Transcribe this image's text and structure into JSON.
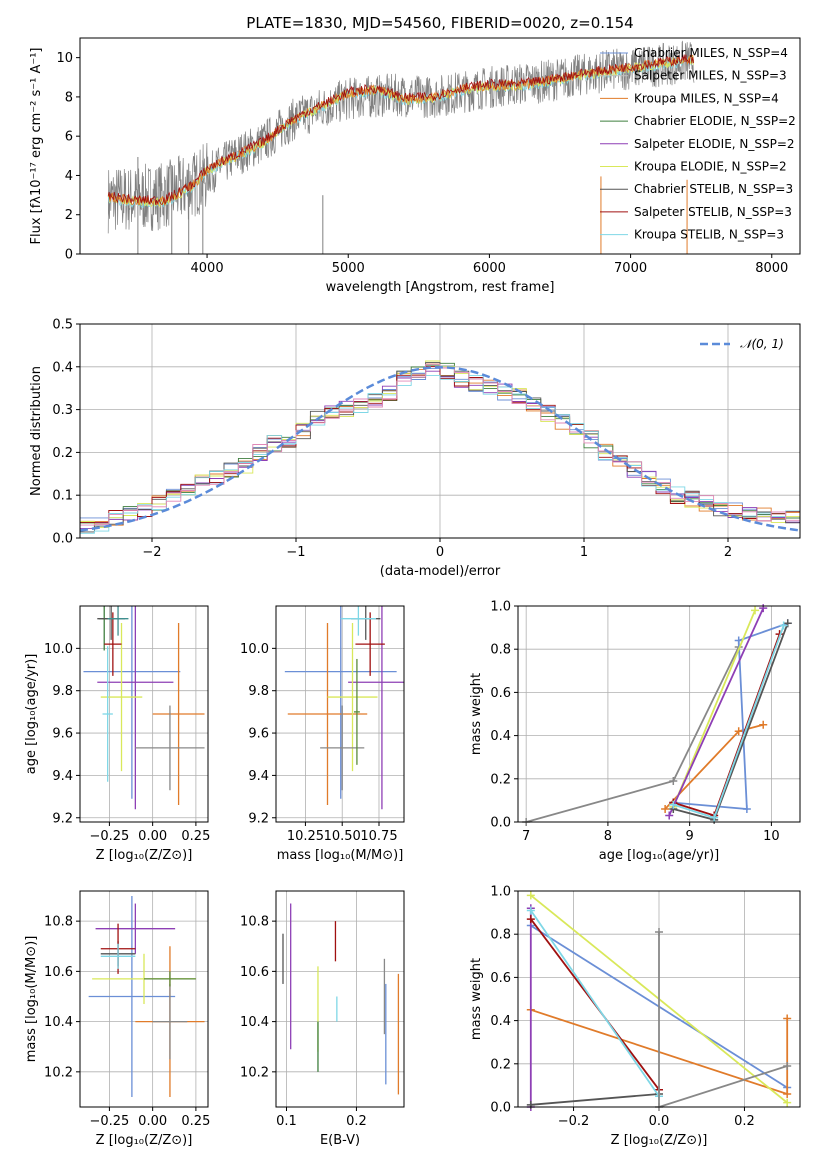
{
  "figure": {
    "title": "PLATE=1830, MJD=54560, FIBERID=0020, z=0.154"
  },
  "model_colors": {
    "Chabrier MILES": "#6b8fd6",
    "Salpeter MILES": "#c0c0c0",
    "Kroupa MILES": "#e07b2a",
    "Chabrier ELODIE": "#3f7f3f",
    "Salpeter ELODIE": "#8e3fb5",
    "Kroupa ELODIE": "#d9e85a",
    "Chabrier STELIB": "#555555",
    "Salpeter STELIB": "#a01010",
    "Kroupa STELIB": "#7fd7e6",
    "data_spectrum": "#808080",
    "normal_curve": "#5b8bd9",
    "pink_model": "#e088b8"
  },
  "chart_data": [
    {
      "id": "spectrum",
      "type": "line",
      "xlabel": "wavelength [Angstrom, rest frame]",
      "ylabel": "Flux [fλ10⁻¹⁷ erg cm⁻² s⁻¹ A⁻¹]",
      "xlim": [
        3100,
        8200
      ],
      "ylim": [
        0,
        11
      ],
      "xticks": [
        "4000",
        "5000",
        "6000",
        "7000",
        "8000"
      ],
      "yticks": [
        "0",
        "2",
        "4",
        "6",
        "8",
        "10"
      ],
      "legend_position": "top-right",
      "legend": [
        "Chabrier MILES, N_SSP=4",
        "Salpeter MILES, N_SSP=3",
        "Kroupa MILES, N_SSP=4",
        "Chabrier ELODIE, N_SSP=2",
        "Salpeter ELODIE, N_SSP=2",
        "Kroupa ELODIE, N_SSP=2",
        "Chabrier STELIB, N_SSP=3",
        "Salpeter STELIB, N_SSP=3",
        "Kroupa STELIB, N_SSP=3"
      ],
      "model_trend": {
        "x": [
          3300,
          3500,
          3700,
          3900,
          4000,
          4200,
          4400,
          4600,
          4800,
          5000,
          5200,
          5400,
          5600,
          5800,
          6000,
          6200,
          6400,
          6600,
          6800,
          7000,
          7200,
          7400
        ],
        "y": [
          2.8,
          2.6,
          2.6,
          3.4,
          4.2,
          4.9,
          5.6,
          6.7,
          7.4,
          8.1,
          8.3,
          7.8,
          7.9,
          8.3,
          8.5,
          8.5,
          8.7,
          9.0,
          9.2,
          9.4,
          9.6,
          9.8
        ]
      },
      "data_trend": {
        "x": [
          3500,
          3700,
          3900,
          4200,
          4400,
          4600,
          4800,
          5000,
          5300,
          5600,
          6000,
          6400,
          6800,
          7200,
          7400
        ],
        "y": [
          2.8,
          3.0,
          3.5,
          5.0,
          5.7,
          6.8,
          7.4,
          7.9,
          8.1,
          8.0,
          8.5,
          8.8,
          9.3,
          9.6,
          9.8
        ]
      },
      "vertical_spikes_x": [
        3510,
        3750,
        3870,
        3970,
        4820,
        6790,
        7400
      ]
    },
    {
      "id": "residuals",
      "type": "bar",
      "xlabel": "(data-model)/error",
      "ylabel": "Normed distribution",
      "xlim": [
        -2.5,
        2.5
      ],
      "ylim": [
        0,
        0.5
      ],
      "xticks": [
        "−2",
        "−1",
        "0",
        "1",
        "2"
      ],
      "yticks": [
        "0.0",
        "0.1",
        "0.2",
        "0.3",
        "0.4",
        "0.5"
      ],
      "legend_position": "top-right",
      "legend": [
        "𝒩(0, 1)"
      ],
      "bin_width": 0.1,
      "histogram": {
        "bin_centers": [
          -2.45,
          -2.35,
          -2.25,
          -2.15,
          -2.05,
          -1.95,
          -1.85,
          -1.75,
          -1.65,
          -1.55,
          -1.45,
          -1.35,
          -1.25,
          -1.15,
          -1.05,
          -0.95,
          -0.85,
          -0.75,
          -0.65,
          -0.55,
          -0.45,
          -0.35,
          -0.25,
          -0.15,
          -0.05,
          0.05,
          0.15,
          0.25,
          0.35,
          0.45,
          0.55,
          0.65,
          0.75,
          0.85,
          0.95,
          1.05,
          1.15,
          1.25,
          1.35,
          1.45,
          1.55,
          1.65,
          1.75,
          1.85,
          1.95,
          2.05,
          2.15,
          2.25,
          2.35,
          2.45
        ],
        "values": [
          0.03,
          0.035,
          0.045,
          0.06,
          0.07,
          0.085,
          0.1,
          0.12,
          0.13,
          0.14,
          0.155,
          0.17,
          0.2,
          0.22,
          0.23,
          0.25,
          0.28,
          0.29,
          0.3,
          0.31,
          0.32,
          0.34,
          0.37,
          0.38,
          0.4,
          0.39,
          0.37,
          0.36,
          0.35,
          0.34,
          0.33,
          0.31,
          0.29,
          0.27,
          0.25,
          0.23,
          0.2,
          0.18,
          0.16,
          0.14,
          0.12,
          0.1,
          0.09,
          0.08,
          0.07,
          0.065,
          0.06,
          0.055,
          0.05,
          0.045
        ]
      },
      "normal_curve": {
        "mean": 0,
        "sigma": 1
      }
    },
    {
      "id": "age_vs_Z",
      "type": "scatter",
      "xlabel": "Z [log₁₀(Z/Z⊙)]",
      "ylabel": "age  [log₁₀(age/yr)]",
      "xlim": [
        -0.42,
        0.32
      ],
      "ylim": [
        9.18,
        10.2
      ],
      "xticks": [
        "−0.25",
        "0.00",
        "0.25"
      ],
      "yticks": [
        "9.2",
        "9.4",
        "9.6",
        "9.8",
        "10.0"
      ],
      "points": [
        {
          "model": "Chabrier MILES",
          "x": -0.12,
          "y": 9.89,
          "xerr": 0.28,
          "yerr": 0.6
        },
        {
          "model": "Kroupa MILES",
          "x": 0.15,
          "y": 9.69,
          "xerr": 0.15,
          "yerr": 0.43
        },
        {
          "model": "Chabrier ELODIE",
          "x": -0.28,
          "y": 10.14,
          "xerr": 0.03,
          "yerr": 0.15
        },
        {
          "model": "Salpeter ELODIE",
          "x": -0.1,
          "y": 9.84,
          "xerr": 0.22,
          "yerr": 0.6
        },
        {
          "model": "Kroupa ELODIE",
          "x": -0.18,
          "y": 9.77,
          "xerr": 0.12,
          "yerr": 0.35
        },
        {
          "model": "Chabrier STELIB",
          "x": -0.24,
          "y": 10.14,
          "xerr": 0.08,
          "yerr": 0.1
        },
        {
          "model": "Salpeter STELIB",
          "x": -0.23,
          "y": 10.02,
          "xerr": 0.05,
          "yerr": 0.15
        },
        {
          "model": "Kroupa STELIB",
          "x": -0.26,
          "y": 9.69,
          "xerr": 0.03,
          "yerr": 0.32
        },
        {
          "model": "pink",
          "x": 0.1,
          "y": 9.53,
          "xerr": 0.2,
          "yerr": 0.2
        },
        {
          "model": "teal",
          "x": -0.2,
          "y": 10.14,
          "xerr": 0.06,
          "yerr": 0.08
        }
      ]
    },
    {
      "id": "age_vs_mass",
      "type": "scatter",
      "xlabel": "mass [log₁₀(M/M⊙)]",
      "ylabel": "",
      "xlim": [
        10.05,
        10.92
      ],
      "ylim": [
        9.18,
        10.2
      ],
      "xticks": [
        "10.25",
        "10.50",
        "10.75"
      ],
      "yticks": [
        "9.2",
        "9.4",
        "9.6",
        "9.8",
        "10.0"
      ],
      "points": [
        {
          "model": "Chabrier MILES",
          "x": 10.49,
          "y": 9.89,
          "xerr": 0.38,
          "yerr": 0.6
        },
        {
          "model": "Kroupa MILES",
          "x": 10.4,
          "y": 9.69,
          "xerr": 0.27,
          "yerr": 0.43
        },
        {
          "model": "Salpeter ELODIE",
          "x": 10.77,
          "y": 9.84,
          "xerr": 0.23,
          "yerr": 0.6
        },
        {
          "model": "Kroupa ELODIE",
          "x": 10.57,
          "y": 9.77,
          "xerr": 0.17,
          "yerr": 0.35
        },
        {
          "model": "Chabrier STELIB",
          "x": 10.66,
          "y": 10.14,
          "xerr": 0.1,
          "yerr": 0.1
        },
        {
          "model": "Salpeter STELIB",
          "x": 10.69,
          "y": 10.02,
          "xerr": 0.1,
          "yerr": 0.15
        },
        {
          "model": "Kroupa STELIB",
          "x": 10.61,
          "y": 10.14,
          "xerr": 0.12,
          "yerr": 0.08
        },
        {
          "model": "pink",
          "x": 10.5,
          "y": 9.53,
          "xerr": 0.15,
          "yerr": 0.2
        },
        {
          "model": "green",
          "x": 10.6,
          "y": 9.7,
          "xerr": 0.02,
          "yerr": 0.25
        }
      ]
    },
    {
      "id": "cum_weight_vs_age",
      "type": "line",
      "xlabel": "age  [log₁₀(age/yr)]",
      "ylabel": "mass weight",
      "xlim": [
        6.9,
        10.35
      ],
      "ylim": [
        0,
        1.0
      ],
      "xticks": [
        "7",
        "8",
        "9",
        "10"
      ],
      "yticks": [
        "0.0",
        "0.2",
        "0.4",
        "0.6",
        "0.8",
        "1.0"
      ],
      "series": [
        {
          "model": "pink",
          "x": [
            7.0,
            8.8,
            9.6
          ],
          "y": [
            0.0,
            0.19,
            0.81
          ]
        },
        {
          "model": "Kroupa MILES",
          "x": [
            8.7,
            9.6,
            9.9
          ],
          "y": [
            0.06,
            0.42,
            0.45
          ]
        },
        {
          "model": "Chabrier MILES",
          "x": [
            8.8,
            9.7,
            9.6,
            10.2
          ],
          "y": [
            0.09,
            0.06,
            0.84,
            0.92
          ]
        },
        {
          "model": "Salpeter STELIB",
          "x": [
            8.8,
            9.3,
            10.1
          ],
          "y": [
            0.09,
            0.03,
            0.87
          ]
        },
        {
          "model": "Kroupa ELODIE",
          "x": [
            8.8,
            9.8
          ],
          "y": [
            0.07,
            0.98
          ]
        },
        {
          "model": "Salpeter ELODIE",
          "x": [
            8.75,
            9.9
          ],
          "y": [
            0.03,
            0.99
          ]
        },
        {
          "model": "Chabrier STELIB",
          "x": [
            8.8,
            9.3,
            10.2
          ],
          "y": [
            0.06,
            0.01,
            0.92
          ]
        },
        {
          "model": "Kroupa STELIB",
          "x": [
            8.8,
            9.3,
            10.15
          ],
          "y": [
            0.08,
            0.02,
            0.91
          ]
        }
      ]
    },
    {
      "id": "mass_vs_Z",
      "type": "scatter",
      "xlabel": "Z [log₁₀(Z/Z⊙)]",
      "ylabel": "mass [log₁₀(M/M⊙)]",
      "xlim": [
        -0.42,
        0.32
      ],
      "ylim": [
        10.06,
        10.92
      ],
      "xticks": [
        "−0.25",
        "0.00",
        "0.25"
      ],
      "yticks": [
        "10.2",
        "10.4",
        "10.6",
        "10.8"
      ],
      "points": [
        {
          "model": "Chabrier MILES",
          "x": -0.12,
          "y": 10.5,
          "xerr": 0.25,
          "yerr": 0.4
        },
        {
          "model": "Kroupa MILES",
          "x": 0.1,
          "y": 10.4,
          "xerr": 0.2,
          "yerr": 0.3
        },
        {
          "model": "Salpeter ELODIE",
          "x": -0.1,
          "y": 10.77,
          "xerr": 0.23,
          "yerr": 0.1
        },
        {
          "model": "Kroupa ELODIE",
          "x": -0.05,
          "y": 10.57,
          "xerr": 0.3,
          "yerr": 0.1
        },
        {
          "model": "Chabrier STELIB",
          "x": -0.2,
          "y": 10.67,
          "xerr": 0.1,
          "yerr": 0.05
        },
        {
          "model": "Salpeter STELIB",
          "x": -0.2,
          "y": 10.69,
          "xerr": 0.1,
          "yerr": 0.1
        },
        {
          "model": "Kroupa STELIB",
          "x": -0.2,
          "y": 10.66,
          "xerr": 0.1,
          "yerr": 0.05
        },
        {
          "model": "pink",
          "x": 0.1,
          "y": 10.4,
          "xerr": 0.1,
          "yerr": 0.15
        },
        {
          "model": "green",
          "x": 0.1,
          "y": 10.57,
          "xerr": 0.15,
          "yerr": 0.03
        }
      ]
    },
    {
      "id": "mass_vs_EBV",
      "type": "scatter",
      "xlabel": "E(B-V)",
      "ylabel": "",
      "xlim": [
        0.085,
        0.268
      ],
      "ylim": [
        10.06,
        10.92
      ],
      "xticks": [
        "0.1",
        "0.2"
      ],
      "yticks": [
        "10.2",
        "10.4",
        "10.6",
        "10.8"
      ],
      "points": [
        {
          "model": "Chabrier STELIB",
          "x": 0.095,
          "y": 10.65,
          "yerr": 0.1
        },
        {
          "model": "Salpeter ELODIE",
          "x": 0.106,
          "y": 10.58,
          "yerr": 0.29
        },
        {
          "model": "Kroupa ELODIE",
          "x": 0.145,
          "y": 10.45,
          "yerr": 0.17
        },
        {
          "model": "Chabrier ELODIE",
          "x": 0.145,
          "y": 10.3,
          "yerr": 0.1
        },
        {
          "model": "Salpeter STELIB",
          "x": 0.17,
          "y": 10.72,
          "yerr": 0.08
        },
        {
          "model": "Kroupa STELIB",
          "x": 0.172,
          "y": 10.45,
          "yerr": 0.05
        },
        {
          "model": "pink",
          "x": 0.24,
          "y": 10.5,
          "yerr": 0.15
        },
        {
          "model": "Chabrier MILES",
          "x": 0.242,
          "y": 10.35,
          "yerr": 0.2
        },
        {
          "model": "Kroupa MILES",
          "x": 0.26,
          "y": 10.35,
          "yerr": 0.24
        }
      ]
    },
    {
      "id": "cum_weight_vs_Z",
      "type": "line",
      "xlabel": "Z [log₁₀(Z/Z⊙)]",
      "ylabel": "mass weight",
      "xlim": [
        -0.33,
        0.33
      ],
      "ylim": [
        0,
        1.0
      ],
      "xticks": [
        "−0.2",
        "0.0",
        "0.2"
      ],
      "yticks": [
        "0.0",
        "0.2",
        "0.4",
        "0.6",
        "0.8",
        "1.0"
      ],
      "series": [
        {
          "model": "Chabrier MILES",
          "x": [
            -0.3,
            0.3
          ],
          "y": [
            0.84,
            0.09
          ]
        },
        {
          "model": "Kroupa MILES",
          "x": [
            -0.3,
            0.3,
            0.3
          ],
          "y": [
            0.45,
            0.06,
            0.41
          ]
        },
        {
          "model": "Kroupa ELODIE",
          "x": [
            -0.3,
            0.3
          ],
          "y": [
            0.98,
            0.02
          ]
        },
        {
          "model": "Salpeter ELODIE",
          "x": [
            -0.3,
            -0.3
          ],
          "y": [
            0.0,
            0.92
          ]
        },
        {
          "model": "Chabrier STELIB",
          "x": [
            -0.3,
            0.0
          ],
          "y": [
            0.01,
            0.06
          ]
        },
        {
          "model": "Salpeter STELIB",
          "x": [
            -0.3,
            0.0
          ],
          "y": [
            0.87,
            0.08
          ]
        },
        {
          "model": "Kroupa STELIB",
          "x": [
            -0.3,
            0.0
          ],
          "y": [
            0.91,
            0.05
          ]
        },
        {
          "model": "pink",
          "x": [
            0.0,
            0.0,
            0.3
          ],
          "y": [
            0.81,
            0.0,
            0.19
          ]
        }
      ]
    }
  ]
}
